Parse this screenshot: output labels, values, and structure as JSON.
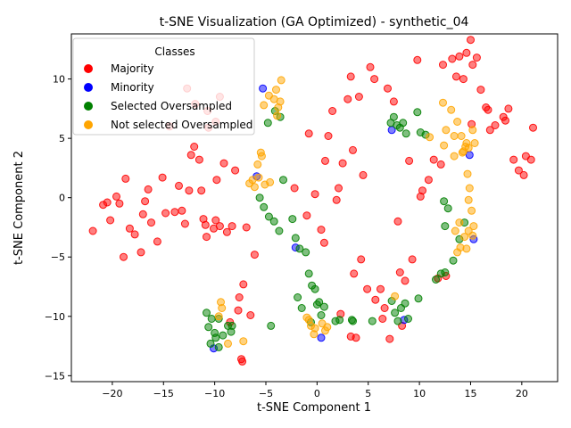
{
  "chart_data": {
    "type": "scatter",
    "title": "t-SNE Visualization (GA Optimized) - synthetic_04",
    "xlabel": "t-SNE Component 1",
    "ylabel": "t-SNE Component 2",
    "xlim": [
      -24,
      23.5
    ],
    "ylim": [
      -15.5,
      13.8
    ],
    "xticks": [
      -20,
      -15,
      -10,
      -5,
      0,
      5,
      10,
      15,
      20
    ],
    "yticks": [
      -15,
      -10,
      -5,
      0,
      5,
      10
    ],
    "grid": false,
    "legend": {
      "title": "Classes",
      "placement": "top-left",
      "entries": [
        "Majority",
        "Minority",
        "Selected Oversampled",
        "Not selected Oversampled"
      ]
    },
    "series": [
      {
        "name": "Majority",
        "color": "#ff0000",
        "points": [
          [
            -21.9,
            -2.8
          ],
          [
            -20.9,
            -0.6
          ],
          [
            -20.2,
            -1.9
          ],
          [
            -19.3,
            -0.5
          ],
          [
            -18.9,
            -5.0
          ],
          [
            -18.7,
            1.6
          ],
          [
            -18.3,
            -2.6
          ],
          [
            -17.8,
            -3.1
          ],
          [
            -17.2,
            -4.6
          ],
          [
            -17.0,
            -1.4
          ],
          [
            -16.5,
            0.7
          ],
          [
            -16.2,
            -2.1
          ],
          [
            -15.6,
            -3.7
          ],
          [
            -15.1,
            1.7
          ],
          [
            -14.4,
            6.0
          ],
          [
            -13.9,
            -1.2
          ],
          [
            -13.5,
            1.0
          ],
          [
            -12.9,
            -2.2
          ],
          [
            -12.5,
            0.6
          ],
          [
            -12.0,
            4.3
          ],
          [
            -11.5,
            3.2
          ],
          [
            -11.3,
            0.6
          ],
          [
            -10.9,
            -2.3
          ],
          [
            -10.6,
            5.9
          ],
          [
            -10.1,
            -2.6
          ],
          [
            -9.8,
            1.5
          ],
          [
            -9.5,
            -2.4
          ],
          [
            -9.1,
            2.9
          ],
          [
            -8.8,
            -2.9
          ],
          [
            -8.3,
            -2.4
          ],
          [
            -8.0,
            2.3
          ],
          [
            -7.7,
            -9.5
          ],
          [
            -7.4,
            -13.6
          ],
          [
            -7.2,
            -7.3
          ],
          [
            -6.9,
            -2.5
          ],
          [
            -6.5,
            -9.9
          ],
          [
            -6.1,
            -4.8
          ],
          [
            -12.7,
            9.2
          ],
          [
            -11.9,
            7.9
          ],
          [
            -10.7,
            7.3
          ],
          [
            -9.9,
            6.4
          ],
          [
            -9.5,
            8.5
          ],
          [
            -13.2,
            -1.1
          ],
          [
            -14.8,
            -1.3
          ],
          [
            -19.6,
            0.1
          ],
          [
            -20.5,
            -0.4
          ],
          [
            -16.8,
            -0.3
          ],
          [
            -12.3,
            3.6
          ],
          [
            -11.1,
            -1.8
          ],
          [
            -7.6,
            -8.4
          ],
          [
            -7.3,
            -13.8
          ],
          [
            -8.5,
            -10.5
          ],
          [
            -9.9,
            -1.9
          ],
          [
            -10.8,
            -3.3
          ],
          [
            -2.2,
            0.8
          ],
          [
            -0.8,
            5.4
          ],
          [
            -0.2,
            0.3
          ],
          [
            0.8,
            3.1
          ],
          [
            1.1,
            5.2
          ],
          [
            1.5,
            7.3
          ],
          [
            2.1,
            0.8
          ],
          [
            2.5,
            2.9
          ],
          [
            3.0,
            8.3
          ],
          [
            3.3,
            10.2
          ],
          [
            3.5,
            4.0
          ],
          [
            3.6,
            -6.4
          ],
          [
            3.8,
            -11.8
          ],
          [
            4.1,
            8.5
          ],
          [
            4.3,
            -5.2
          ],
          [
            4.5,
            1.9
          ],
          [
            4.9,
            -7.7
          ],
          [
            5.2,
            11.0
          ],
          [
            5.6,
            10.0
          ],
          [
            5.7,
            -8.6
          ],
          [
            6.2,
            -7.7
          ],
          [
            6.6,
            -9.3
          ],
          [
            6.9,
            9.2
          ],
          [
            7.1,
            -11.9
          ],
          [
            7.5,
            8.1
          ],
          [
            7.9,
            -2.0
          ],
          [
            8.1,
            -6.3
          ],
          [
            8.6,
            -7.0
          ],
          [
            9.0,
            3.1
          ],
          [
            9.3,
            -5.2
          ],
          [
            9.8,
            11.6
          ],
          [
            10.3,
            0.6
          ],
          [
            10.9,
            1.5
          ],
          [
            11.4,
            3.2
          ],
          [
            11.8,
            -6.8
          ],
          [
            12.1,
            2.8
          ],
          [
            12.3,
            11.2
          ],
          [
            12.6,
            -6.6
          ],
          [
            13.2,
            11.7
          ],
          [
            13.6,
            10.2
          ],
          [
            13.9,
            11.9
          ],
          [
            14.3,
            10.0
          ],
          [
            14.6,
            12.2
          ],
          [
            15.0,
            13.3
          ],
          [
            15.2,
            11.2
          ],
          [
            15.6,
            11.8
          ],
          [
            16.0,
            9.1
          ],
          [
            16.5,
            7.6
          ],
          [
            16.9,
            5.7
          ],
          [
            17.4,
            6.1
          ],
          [
            18.2,
            6.8
          ],
          [
            18.7,
            7.5
          ],
          [
            19.2,
            3.2
          ],
          [
            19.7,
            2.3
          ],
          [
            20.2,
            1.9
          ],
          [
            20.9,
            3.2
          ],
          [
            21.1,
            5.9
          ],
          [
            -1.0,
            -1.5
          ],
          [
            0.4,
            -2.7
          ],
          [
            0.7,
            -3.8
          ],
          [
            1.9,
            -0.2
          ],
          [
            2.3,
            -9.8
          ],
          [
            3.3,
            -11.7
          ],
          [
            6.4,
            -10.2
          ],
          [
            8.3,
            -10.8
          ],
          [
            10.1,
            0.1
          ],
          [
            15.1,
            6.2
          ],
          [
            16.7,
            7.4
          ],
          [
            18.4,
            6.5
          ],
          [
            20.4,
            3.5
          ]
        ]
      },
      {
        "name": "Minority",
        "color": "#0000ff",
        "points": [
          [
            -5.9,
            1.8
          ],
          [
            -5.3,
            9.2
          ],
          [
            -2.1,
            -4.2
          ],
          [
            0.4,
            -11.8
          ],
          [
            -10.1,
            -12.7
          ],
          [
            7.3,
            5.7
          ],
          [
            8.5,
            -10.3
          ],
          [
            14.9,
            3.6
          ],
          [
            15.3,
            -3.5
          ]
        ]
      },
      {
        "name": "Selected Oversampled",
        "color": "#008000",
        "points": [
          [
            -10.8,
            -9.7
          ],
          [
            -10.6,
            -10.9
          ],
          [
            -10.4,
            -12.3
          ],
          [
            -10.0,
            -11.4
          ],
          [
            -9.6,
            -12.6
          ],
          [
            -9.2,
            -11.6
          ],
          [
            -8.7,
            -10.8
          ],
          [
            -8.4,
            -11.3
          ],
          [
            -10.3,
            -10.2
          ],
          [
            -9.9,
            -11.8
          ],
          [
            -5.6,
            0.0
          ],
          [
            -5.2,
            -0.8
          ],
          [
            -4.7,
            -1.6
          ],
          [
            -4.2,
            -2.0
          ],
          [
            -3.7,
            -2.8
          ],
          [
            -3.3,
            1.5
          ],
          [
            -2.4,
            -1.8
          ],
          [
            -2.1,
            -3.4
          ],
          [
            -1.7,
            -4.3
          ],
          [
            -1.1,
            -4.6
          ],
          [
            -0.8,
            -6.4
          ],
          [
            -0.5,
            -7.4
          ],
          [
            -0.2,
            -7.7
          ],
          [
            0.2,
            -8.8
          ],
          [
            0.4,
            -9.9
          ],
          [
            0.7,
            -9.2
          ],
          [
            -1.9,
            -8.4
          ],
          [
            -1.5,
            -9.3
          ],
          [
            -4.5,
            -10.8
          ],
          [
            -4.8,
            6.3
          ],
          [
            -4.1,
            7.3
          ],
          [
            -3.6,
            6.8
          ],
          [
            1.8,
            -10.4
          ],
          [
            2.2,
            -10.3
          ],
          [
            3.4,
            -10.3
          ],
          [
            5.4,
            -10.4
          ],
          [
            7.3,
            -8.7
          ],
          [
            7.6,
            -9.7
          ],
          [
            7.9,
            -10.4
          ],
          [
            8.2,
            -9.3
          ],
          [
            8.6,
            -8.9
          ],
          [
            8.9,
            -10.2
          ],
          [
            9.9,
            -8.5
          ],
          [
            7.2,
            6.3
          ],
          [
            7.5,
            6.8
          ],
          [
            7.8,
            6.1
          ],
          [
            8.1,
            5.9
          ],
          [
            8.4,
            6.3
          ],
          [
            8.7,
            5.4
          ],
          [
            9.8,
            7.2
          ],
          [
            10.1,
            5.5
          ],
          [
            10.6,
            5.3
          ],
          [
            12.4,
            -0.3
          ],
          [
            12.8,
            -0.9
          ],
          [
            12.1,
            -6.4
          ],
          [
            12.5,
            -6.3
          ],
          [
            13.3,
            -5.3
          ],
          [
            13.9,
            -3.5
          ],
          [
            12.5,
            -2.4
          ],
          [
            14.4,
            -2.1
          ],
          [
            11.6,
            -6.9
          ],
          [
            -8.3,
            -10.8
          ],
          [
            -9.6,
            -10.2
          ],
          [
            0.0,
            -9.0
          ],
          [
            -0.6,
            -10.5
          ],
          [
            3.5,
            -10.4
          ]
        ]
      },
      {
        "name": "Not selected Oversampled",
        "color": "#ffa500",
        "points": [
          [
            -9.4,
            -8.8
          ],
          [
            -9.3,
            -9.3
          ],
          [
            -9.6,
            -10.0
          ],
          [
            -8.7,
            -12.3
          ],
          [
            -7.2,
            -12.1
          ],
          [
            -6.6,
            1.2
          ],
          [
            -6.3,
            1.5
          ],
          [
            -6.1,
            0.9
          ],
          [
            -5.7,
            1.7
          ],
          [
            -5.4,
            3.5
          ],
          [
            -5.5,
            3.8
          ],
          [
            -5.8,
            2.8
          ],
          [
            -5.1,
            1.1
          ],
          [
            -4.6,
            1.3
          ],
          [
            -4.2,
            8.3
          ],
          [
            -3.8,
            7.6
          ],
          [
            -3.5,
            9.9
          ],
          [
            -4.7,
            8.6
          ],
          [
            -5.2,
            7.8
          ],
          [
            -4.0,
            9.1
          ],
          [
            -3.6,
            8.1
          ],
          [
            -3.9,
            6.9
          ],
          [
            -0.8,
            -10.3
          ],
          [
            -0.6,
            -10.8
          ],
          [
            -0.3,
            -11.5
          ],
          [
            0.5,
            -10.6
          ],
          [
            1.0,
            -10.9
          ],
          [
            0.8,
            -11.2
          ],
          [
            -1.0,
            -10.1
          ],
          [
            -0.2,
            -11.0
          ],
          [
            7.6,
            -8.3
          ],
          [
            11.0,
            5.1
          ],
          [
            12.3,
            8.0
          ],
          [
            12.6,
            5.7
          ],
          [
            13.1,
            7.4
          ],
          [
            13.4,
            5.2
          ],
          [
            13.7,
            6.4
          ],
          [
            14.1,
            5.2
          ],
          [
            14.5,
            4.3
          ],
          [
            14.7,
            2.0
          ],
          [
            14.9,
            0.8
          ],
          [
            15.1,
            -1.1
          ],
          [
            15.3,
            -2.4
          ],
          [
            14.8,
            -2.8
          ],
          [
            14.4,
            -3.3
          ],
          [
            14.0,
            -4.2
          ],
          [
            13.7,
            -4.6
          ],
          [
            13.5,
            -2.8
          ],
          [
            13.9,
            -2.1
          ],
          [
            14.6,
            -4.3
          ],
          [
            15.2,
            -3.2
          ],
          [
            15.4,
            4.6
          ],
          [
            14.8,
            4.2
          ],
          [
            14.2,
            3.8
          ],
          [
            13.4,
            3.5
          ],
          [
            12.4,
            4.4
          ],
          [
            14.6,
            4.6
          ],
          [
            15.2,
            5.7
          ],
          [
            14.8,
            -0.2
          ],
          [
            14.3,
            3.9
          ]
        ]
      }
    ]
  }
}
